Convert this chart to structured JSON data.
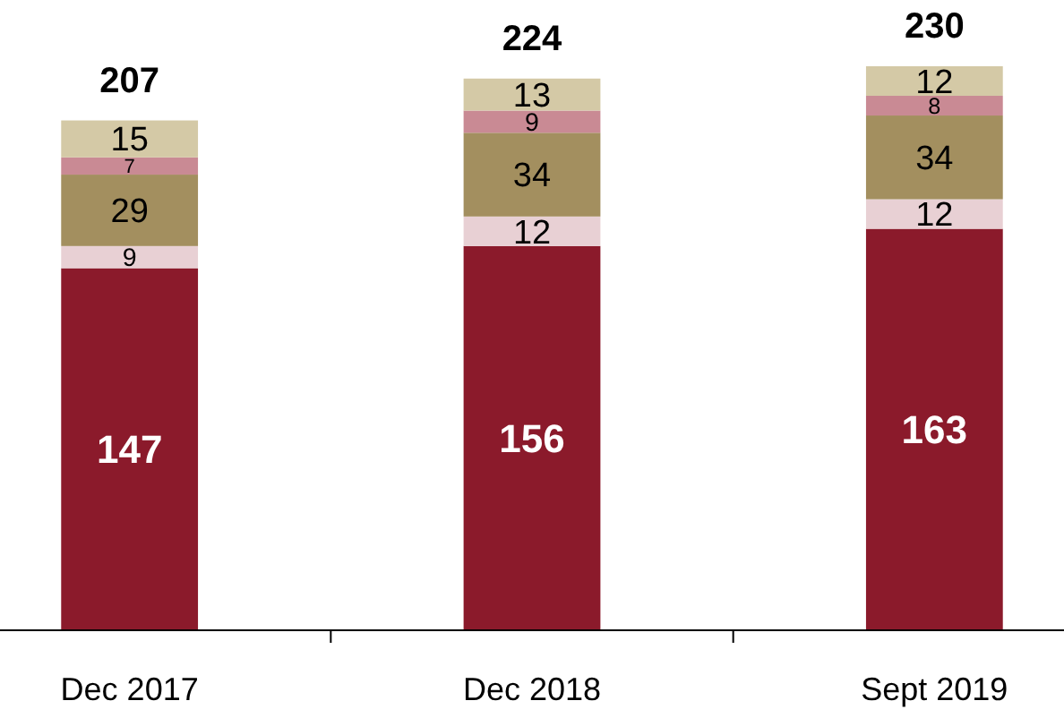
{
  "chart_data": {
    "type": "bar",
    "stacked": true,
    "data_labels": true,
    "categories": [
      "Dec 2017",
      "Dec 2018",
      "Sept 2019"
    ],
    "series": [
      {
        "color": "#8b1a2b",
        "values": [
          147,
          156,
          163
        ]
      },
      {
        "color": "#e8d0d4",
        "values": [
          9,
          12,
          12
        ]
      },
      {
        "color": "#a38f5f",
        "values": [
          29,
          34,
          34
        ]
      },
      {
        "color": "#c98a94",
        "values": [
          7,
          9,
          8
        ]
      },
      {
        "color": "#d4c9a6",
        "values": [
          15,
          13,
          12
        ]
      }
    ],
    "totals": [
      "207",
      "224",
      "230"
    ]
  }
}
